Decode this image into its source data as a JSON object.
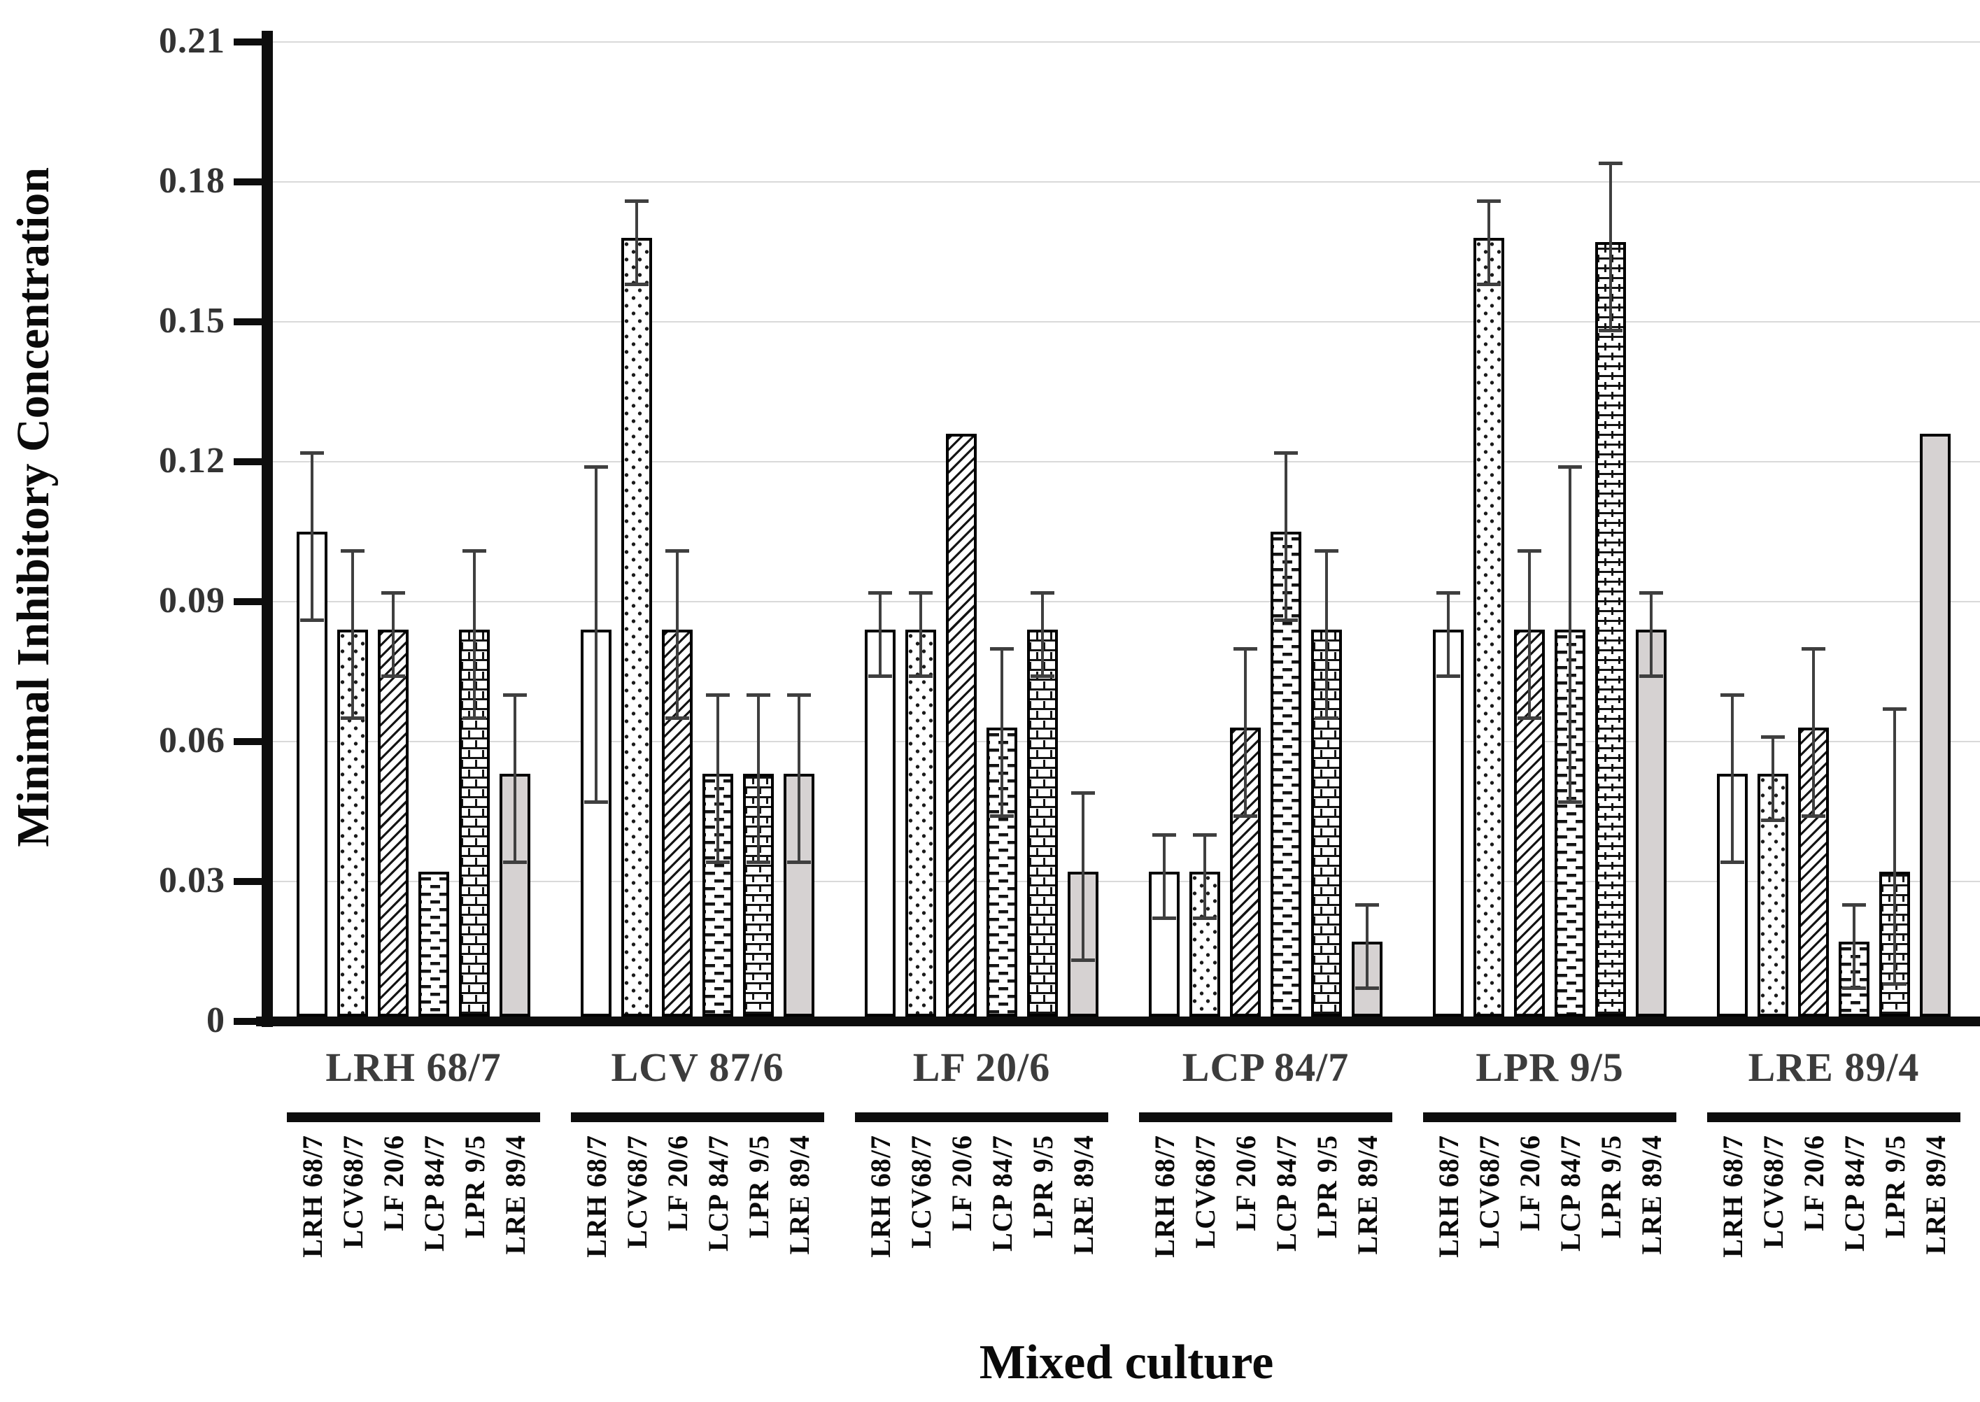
{
  "chart_data": {
    "type": "bar",
    "xlabel": "Mixed culture",
    "ylabel": "Minimal Inhibitory Concentration",
    "ylim": [
      0,
      0.21
    ],
    "ytick_step": 0.03,
    "yticks": [
      "0.21",
      "0.18",
      "0.15",
      "0.12",
      "0.09",
      "0.06",
      "0.03",
      "0"
    ],
    "grid": true,
    "legend_position": "none",
    "series_labels": [
      "LRH 68/7",
      "LCV68/7",
      "LF 20/6",
      "LCP 84/7",
      "LPR 9/5",
      "LRE 89/4"
    ],
    "series_patterns": [
      "plain-white",
      "dotted",
      "diagonal-hatch",
      "dashed-rows",
      "brick",
      "solid-gray"
    ],
    "bar_style": {
      "fill": "#ffffff",
      "border": "#000000",
      "gray_fill": "#d6d2d2",
      "error_color": "#3f3f3f",
      "gridline_color": "#d9d9d9",
      "axis_color": "#0d0d0d"
    },
    "groups": [
      {
        "label": "LRH 68/7",
        "bars": [
          {
            "value": 0.104,
            "err_lo": 0.086,
            "err_hi": 0.122
          },
          {
            "value": 0.083,
            "err_lo": 0.065,
            "err_hi": 0.101
          },
          {
            "value": 0.083,
            "err_lo": 0.074,
            "err_hi": 0.092
          },
          {
            "value": 0.031,
            "err_lo": null,
            "err_hi": null
          },
          {
            "value": 0.083,
            "err_lo": 0.065,
            "err_hi": 0.101
          },
          {
            "value": 0.052,
            "err_lo": 0.034,
            "err_hi": 0.07
          }
        ]
      },
      {
        "label": "LCV 87/6",
        "bars": [
          {
            "value": 0.083,
            "err_lo": 0.047,
            "err_hi": 0.119
          },
          {
            "value": 0.167,
            "err_lo": 0.158,
            "err_hi": 0.176
          },
          {
            "value": 0.083,
            "err_lo": 0.065,
            "err_hi": 0.101
          },
          {
            "value": 0.052,
            "err_lo": 0.034,
            "err_hi": 0.07
          },
          {
            "value": 0.052,
            "err_lo": 0.034,
            "err_hi": 0.07
          },
          {
            "value": 0.052,
            "err_lo": 0.034,
            "err_hi": 0.07
          }
        ]
      },
      {
        "label": "LF 20/6",
        "bars": [
          {
            "value": 0.083,
            "err_lo": 0.074,
            "err_hi": 0.092
          },
          {
            "value": 0.083,
            "err_lo": 0.074,
            "err_hi": 0.092
          },
          {
            "value": 0.125,
            "err_lo": null,
            "err_hi": null
          },
          {
            "value": 0.062,
            "err_lo": 0.044,
            "err_hi": 0.08
          },
          {
            "value": 0.083,
            "err_lo": 0.074,
            "err_hi": 0.092
          },
          {
            "value": 0.031,
            "err_lo": 0.013,
            "err_hi": 0.049
          }
        ]
      },
      {
        "label": "LCP 84/7",
        "bars": [
          {
            "value": 0.031,
            "err_lo": 0.022,
            "err_hi": 0.04
          },
          {
            "value": 0.031,
            "err_lo": 0.022,
            "err_hi": 0.04
          },
          {
            "value": 0.062,
            "err_lo": 0.044,
            "err_hi": 0.08
          },
          {
            "value": 0.104,
            "err_lo": 0.086,
            "err_hi": 0.122
          },
          {
            "value": 0.083,
            "err_lo": 0.065,
            "err_hi": 0.101
          },
          {
            "value": 0.016,
            "err_lo": 0.007,
            "err_hi": 0.025
          }
        ]
      },
      {
        "label": "LPR 9/5",
        "bars": [
          {
            "value": 0.083,
            "err_lo": 0.074,
            "err_hi": 0.092
          },
          {
            "value": 0.167,
            "err_lo": 0.158,
            "err_hi": 0.176
          },
          {
            "value": 0.083,
            "err_lo": 0.065,
            "err_hi": 0.101
          },
          {
            "value": 0.083,
            "err_lo": 0.047,
            "err_hi": 0.119
          },
          {
            "value": 0.166,
            "err_lo": 0.148,
            "err_hi": 0.184
          },
          {
            "value": 0.083,
            "err_lo": 0.074,
            "err_hi": 0.092
          }
        ]
      },
      {
        "label": "LRE 89/4",
        "bars": [
          {
            "value": 0.052,
            "err_lo": 0.034,
            "err_hi": 0.07
          },
          {
            "value": 0.052,
            "err_lo": 0.043,
            "err_hi": 0.061
          },
          {
            "value": 0.062,
            "err_lo": 0.044,
            "err_hi": 0.08
          },
          {
            "value": 0.016,
            "err_lo": 0.007,
            "err_hi": 0.025
          },
          {
            "value": 0.031,
            "err_lo": 0.008,
            "err_hi": 0.067
          },
          {
            "value": 0.125,
            "err_lo": null,
            "err_hi": null
          }
        ]
      }
    ]
  }
}
